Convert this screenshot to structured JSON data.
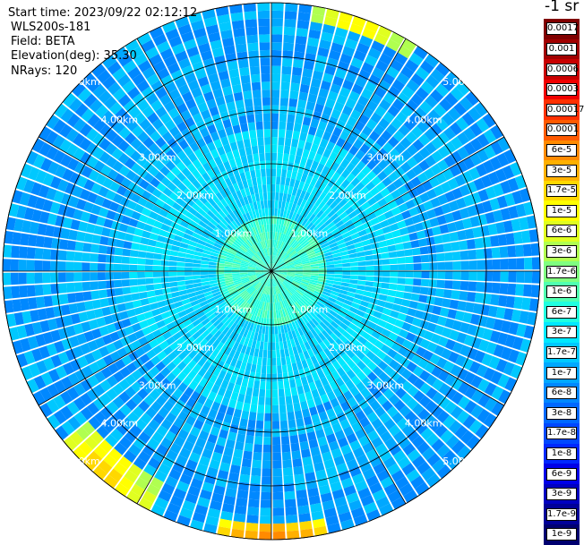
{
  "info": {
    "start_time": "Start time: 2023/09/22 02:12:12",
    "device": "WLS200s-181",
    "field": "Field: BETA",
    "elevation": "Elevation(deg): 35.30",
    "nrays": "NRays: 120"
  },
  "colorbar": {
    "title": "-1 sr",
    "entries": [
      {
        "label": "0.0017",
        "color": "#800000"
      },
      {
        "label": "0.001",
        "color": "#a00000"
      },
      {
        "label": "0.0006",
        "color": "#c80000"
      },
      {
        "label": "0.0003",
        "color": "#f00000"
      },
      {
        "label": "0.00017",
        "color": "#ff3000"
      },
      {
        "label": "0.0001",
        "color": "#ff5a00"
      },
      {
        "label": "6e-5",
        "color": "#ff8a00"
      },
      {
        "label": "3e-5",
        "color": "#ffb000"
      },
      {
        "label": "1.7e-5",
        "color": "#ffd800"
      },
      {
        "label": "1e-5",
        "color": "#ffff00"
      },
      {
        "label": "6e-6",
        "color": "#e0ff20"
      },
      {
        "label": "3e-6",
        "color": "#b0ff50"
      },
      {
        "label": "1.7e-6",
        "color": "#80ff80"
      },
      {
        "label": "1e-6",
        "color": "#50ffb0"
      },
      {
        "label": "6e-7",
        "color": "#20ffe0"
      },
      {
        "label": "3e-7",
        "color": "#00e8ff"
      },
      {
        "label": "1.7e-7",
        "color": "#00c8ff"
      },
      {
        "label": "1e-7",
        "color": "#00a8ff"
      },
      {
        "label": "6e-8",
        "color": "#0088ff"
      },
      {
        "label": "3e-8",
        "color": "#0068ff"
      },
      {
        "label": "1.7e-8",
        "color": "#0048ff"
      },
      {
        "label": "1e-8",
        "color": "#0028ff"
      },
      {
        "label": "6e-9",
        "color": "#0000e8"
      },
      {
        "label": "3e-9",
        "color": "#0000c0"
      },
      {
        "label": "1.7e-9",
        "color": "#000098"
      },
      {
        "label": "1e-9",
        "color": "#000070"
      }
    ]
  },
  "chart_data": {
    "type": "heatmap",
    "subtype": "ppi-polar",
    "field": "BETA",
    "elevation_deg": 35.3,
    "nrays": 120,
    "range_rings": [
      {
        "range_km": 1,
        "label": "1.00km"
      },
      {
        "range_km": 2,
        "label": "2.00km"
      },
      {
        "range_km": 3,
        "label": "3.00km"
      },
      {
        "range_km": 4,
        "label": "4.00km"
      },
      {
        "range_km": 5,
        "label": "5.00km"
      }
    ],
    "radial_lines_deg": [
      0,
      30,
      60,
      90,
      120,
      150,
      180,
      210,
      240,
      270,
      300,
      330
    ],
    "max_range_km": 5.0,
    "value_scale": "log",
    "color_levels": [
      "1e-9",
      "1.7e-9",
      "3e-9",
      "6e-9",
      "1e-8",
      "1.7e-8",
      "3e-8",
      "6e-8",
      "1e-7",
      "1.7e-7",
      "3e-7",
      "6e-7",
      "1e-6",
      "1.7e-6",
      "3e-6",
      "6e-6",
      "1e-5",
      "1.7e-5",
      "3e-5",
      "6e-5",
      "0.0001",
      "0.00017",
      "0.0003",
      "0.0006",
      "0.001",
      "0.0017"
    ],
    "pattern": {
      "near_range_level": "6e-7",
      "mid_range_level": "1.7e-7",
      "far_range_level": "1e-7",
      "hotspots": [
        {
          "azimuth_deg": 20,
          "range_km": 5.1,
          "level": "1.7e-5"
        },
        {
          "azimuth_deg": 180,
          "range_km": 5.0,
          "level": "6e-5"
        },
        {
          "azimuth_deg": 220,
          "range_km": 4.8,
          "level": "1.7e-5"
        }
      ]
    }
  }
}
